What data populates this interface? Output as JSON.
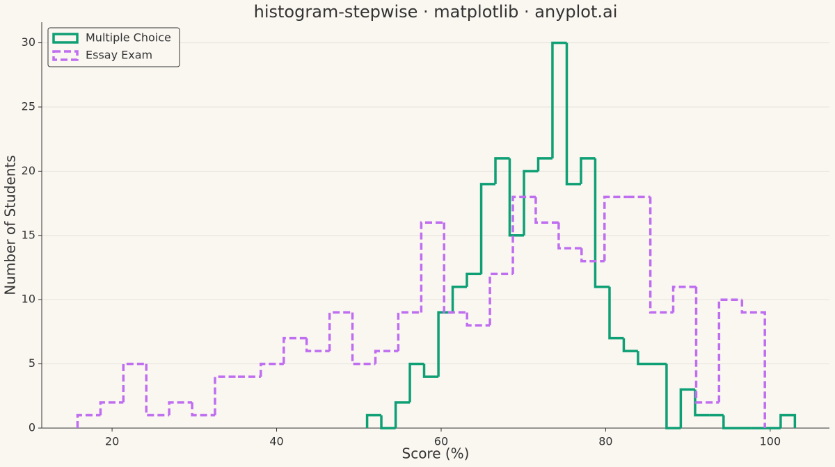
{
  "chart_data": {
    "type": "histogram-step",
    "title": "histogram-stepwise · matplotlib · anyplot.ai",
    "x_label": "Score (%)",
    "y_label": "Number of Students",
    "series": [
      {
        "name": "Multiple Choice",
        "color": "#0e9f74",
        "dashed": false,
        "bins": [
          51,
          52.73,
          54.47,
          56.2,
          57.93,
          59.67,
          61.4,
          63.13,
          64.87,
          66.6,
          68.33,
          70.07,
          71.8,
          73.53,
          75.27,
          77,
          78.73,
          80.47,
          82.2,
          83.93,
          85.67,
          87.4,
          89.13,
          90.87,
          92.6,
          94.33,
          96.07,
          97.8,
          99.53,
          101.27,
          103
        ],
        "values": [
          1,
          0,
          2,
          5,
          4,
          9,
          11,
          12,
          19,
          21,
          15,
          20,
          21,
          30,
          19,
          21,
          11,
          7,
          6,
          5,
          5,
          0,
          3,
          1,
          1,
          0,
          0,
          0,
          0,
          1
        ]
      },
      {
        "name": "Essay Exam",
        "color": "#bf6ef0",
        "dashed": true,
        "bins": [
          15.8,
          18.59,
          21.37,
          24.16,
          26.94,
          29.73,
          32.51,
          35.3,
          38.08,
          40.87,
          43.65,
          46.44,
          49.22,
          52.01,
          54.79,
          57.58,
          60.36,
          63.15,
          65.93,
          68.72,
          71.5,
          74.29,
          77.07,
          79.86,
          82.64,
          85.43,
          88.21,
          91,
          93.78,
          96.57,
          99.35
        ],
        "values": [
          1,
          2,
          5,
          1,
          2,
          1,
          4,
          4,
          5,
          7,
          6,
          9,
          5,
          6,
          9,
          16,
          9,
          8,
          12,
          18,
          16,
          14,
          13,
          18,
          18,
          9,
          11,
          2,
          10,
          9
        ]
      }
    ],
    "xlim": [
      11.45,
      107.2
    ],
    "xticks": [
      20,
      40,
      60,
      80,
      100
    ],
    "ylim": [
      0,
      31.6
    ],
    "yticks": [
      0,
      5,
      10,
      15,
      20,
      25,
      30
    ],
    "grid": true,
    "legend": "upper-left"
  }
}
